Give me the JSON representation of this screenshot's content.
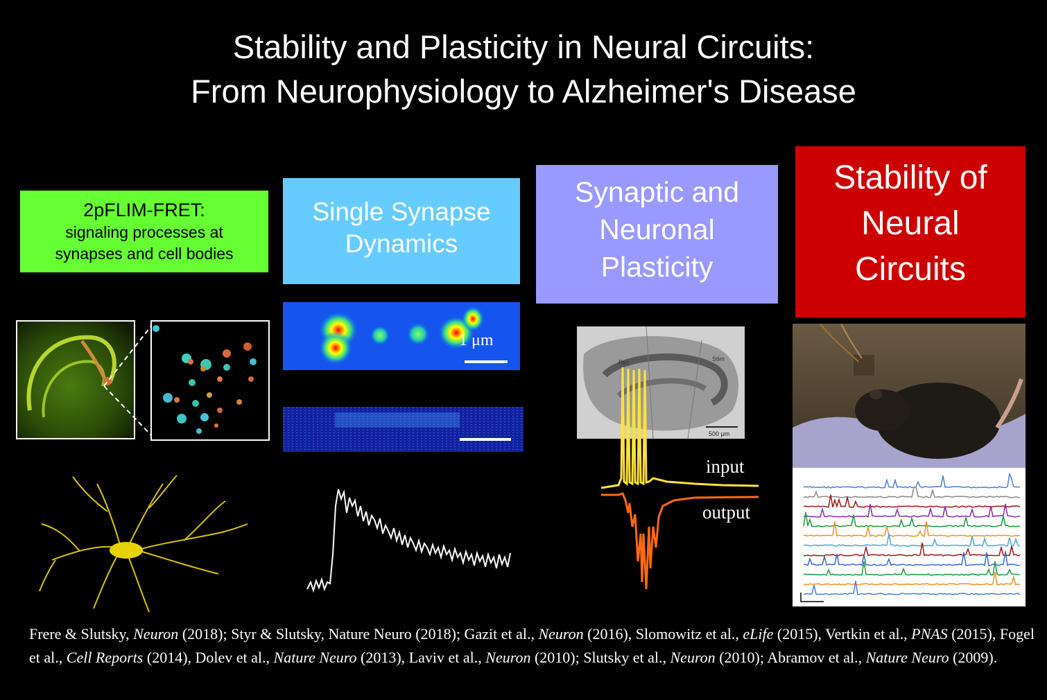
{
  "title": {
    "line1": "Stability and Plasticity in Neural Circuits:",
    "line2": "From Neurophysiology to Alzheimer's Disease"
  },
  "panels": {
    "flim": {
      "heading": "2pFLIM-FRET:",
      "sub1": "signaling processes at",
      "sub2": "synapses and cell bodies",
      "color": "#66ff33"
    },
    "synapse": {
      "line1": "Single Synapse",
      "line2": "Dynamics",
      "color": "#66ccff",
      "scale_label": "1 μm"
    },
    "plasticity": {
      "line1": "Synaptic and",
      "line2": "Neuronal",
      "line3": "Plasticity",
      "color": "#9999ff",
      "slice_label_rec": "Rec",
      "slice_label_stim": "Stim",
      "slice_scale": "500 μm",
      "trace_input": "input",
      "trace_output": "output"
    },
    "stability": {
      "line1": "Stability of",
      "line2": "Neural",
      "line3": "Circuits",
      "color": "#cc0000"
    }
  },
  "references": [
    {
      "t": "Frere & Slutsky, "
    },
    {
      "i": "Neuron"
    },
    {
      "t": " (2018); Styr & Slutsky, Nature Neuro (2018); Gazit et al., "
    },
    {
      "i": "Neuron"
    },
    {
      "t": " (2016), Slomowitz et al., "
    },
    {
      "i": "eLife"
    },
    {
      "t": " (2015), Vertkin et al., "
    },
    {
      "i": "PNAS"
    },
    {
      "t": " (2015), Fogel et al., "
    },
    {
      "i": "Cell Reports"
    },
    {
      "t": " (2014), Dolev et al., "
    },
    {
      "i": "Nature Neuro"
    },
    {
      "t": " (2013), Laviv et al., "
    },
    {
      "i": "Neuron"
    },
    {
      "t": " (2010); Slutsky et al., "
    },
    {
      "i": "Neuron"
    },
    {
      "t": " (2010); Abramov et al., "
    },
    {
      "i": "Nature Neuro"
    },
    {
      "t": " (2009)."
    }
  ]
}
